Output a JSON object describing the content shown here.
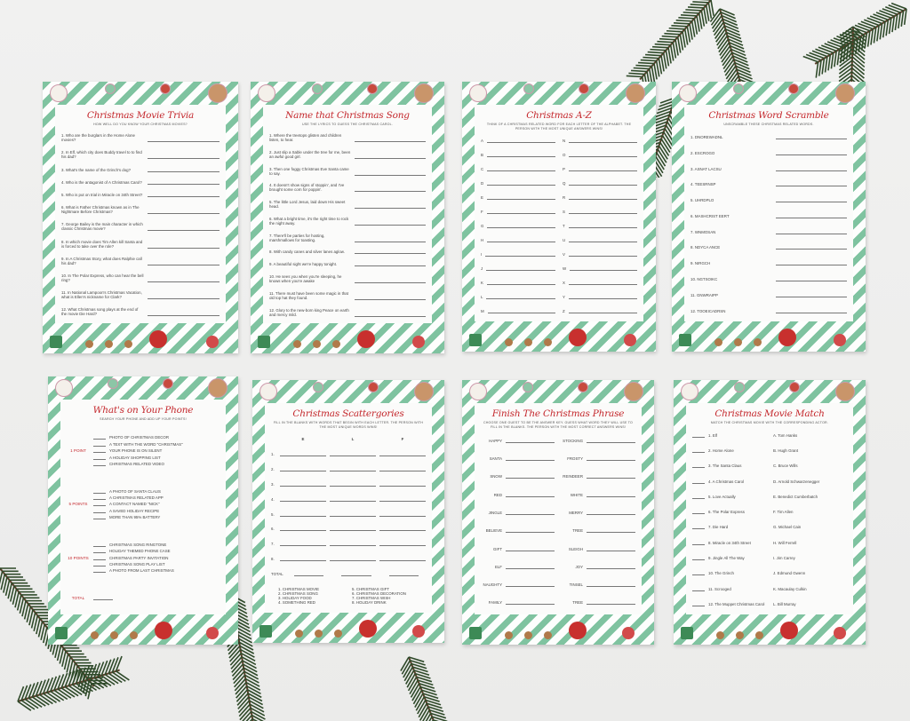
{
  "colors": {
    "stripe": "#7fc3a0",
    "title": "#c4272c",
    "pine": "#2f4a2a"
  },
  "cards": [
    {
      "type": "qa",
      "title": "Christmas Movie Trivia",
      "subtitle": "How well do you know your Christmas movies?",
      "items": [
        "1. Who are the burglars in the Home Alone movies?",
        "2. In Elf, which city does Buddy travel to to find his dad?",
        "3. What's the name of the Grinch's dog?",
        "4. Who is the antagonist of A Christmas Carol?",
        "5. Who is put on trial in Miracle on 34th Street?",
        "6. What is Father Christmas known as in The Nightmare Before Christmas?",
        "7. George Bailey is the main character in which classic Christmas movie?",
        "8. In which movie does Tim Allen kill Santa and is forced to take over the role?",
        "9. In A Christmas Story, what does Ralphie call his dad?",
        "10. In The Polar Express, who can hear the bell ring?",
        "11. In National Lampoon's Christmas Vacation, what is Ellen's nickname for Clark?",
        "12. What Christmas song plays at the end of the movie Die Hard?"
      ]
    },
    {
      "type": "qa",
      "title": "Name that Christmas Song",
      "subtitle": "Use the lyrics to guess the Christmas carol.",
      "items": [
        "1. Where the treetops glisten and children listen, to hear.",
        "2. Just slip a Sable under the tree for me, been an awful good girl.",
        "3. Then one foggy Christmas Eve Santa came to say.",
        "4. It doesn't show signs of stoppin', and I've brought some corn for poppin'.",
        "5. The little Lord Jesus, laid down His sweet head.",
        "6. What a bright time, it's the right time to rock the night away.",
        "7. There'll be parties for hosting, marshmallows for toasting.",
        "8. With candy canes and silver lanes aglow.",
        "9. A beautiful sight we're happy tonight.",
        "10. He sees you when you're sleeping, he knows when you're awake",
        "11. There must have been some magic in that old top hat they found.",
        "12. Glory to the new-born king Peace on earth and mercy mild."
      ]
    },
    {
      "type": "two",
      "title": "Christmas A-Z",
      "subtitle": "Think of a Christmas related word for each letter of the alphabet. The person with the most unique answers wins!",
      "left": [
        "A",
        "B",
        "C",
        "D",
        "E",
        "F",
        "G",
        "H",
        "I",
        "J",
        "K",
        "L",
        "M"
      ],
      "right": [
        "N",
        "O",
        "P",
        "Q",
        "R",
        "S",
        "T",
        "U",
        "V",
        "W",
        "X",
        "Y",
        "Z"
      ]
    },
    {
      "type": "qa",
      "title": "Christmas Word Scramble",
      "subtitle": "Unscramble these Christmas related words.",
      "items": [
        "1. DNOREWADNL",
        "2. ESCROGO",
        "3. ASNAT LACSU",
        "4. TEESRNSP",
        "5. UHRDPLO",
        "6. MASHCRIST EERT",
        "7. WNMOSAN",
        "8. NDYCA ANCE",
        "9. NIRGCH",
        "10. NGTSOIKC",
        "11. GNWRAIPP",
        "12. TOOEICADRSN"
      ]
    },
    {
      "type": "phone",
      "title": "What's on Your Phone",
      "subtitle": "Search your phone and add up your points!",
      "groups": [
        {
          "points": "1 POINT",
          "items": [
            "PHOTO OF CHRISTMAS DECOR",
            "A TEXT WITH THE WORD \"CHRISTMAS\"",
            "YOUR PHONE IS ON SILENT",
            "A HOLIDAY SHOPPING LIST",
            "CHRISTMAS RELATED VIDEO"
          ]
        },
        {
          "points": "5 POINTS",
          "items": [
            "A PHOTO OF SANTA CLAUS",
            "A CHRISTMAS RELATED APP",
            "A CONTACT NAMED \"NICK\"",
            "A SAVED HOLIDAY RECIPE",
            "MORE THAN 95% BATTERY"
          ]
        },
        {
          "points": "10 POINTS",
          "items": [
            "CHRISTMAS SONG RINGTONE",
            "HOLIDAY THEMED PHONE CASE",
            "CHRISTMAS PARTY INVITATION",
            "CHRISTMAS SONG PLAY LIST",
            "A PHOTO FROM LAST CHRISTMAS"
          ]
        }
      ],
      "total": "TOTAL"
    },
    {
      "type": "scat",
      "title": "Christmas Scattergories",
      "subtitle": "Fill in the blanks with words that begin with each letter. The person with the most unique words wins!",
      "letters": [
        "E",
        "L",
        "F"
      ],
      "rows": [
        "1.",
        "2.",
        "3.",
        "4.",
        "5.",
        "6.",
        "7.",
        "8."
      ],
      "total": "TOTAL",
      "categories": [
        "1. CHRISTMAS MOVIE",
        "2. CHRISTMAS SONG",
        "3. HOLIDAY FOOD",
        "4. SOMETHING RED",
        "5. CHRISTMAS GIFT",
        "6. CHRISTMAS DECORATION",
        "7. CHRISTMAS WISH",
        "8. HOLIDAY DRINK"
      ]
    },
    {
      "type": "two",
      "title": "Finish The Christmas Phrase",
      "subtitle": "Choose one guest to be the answer key. Guess what word they will use to fill in the blanks. The person with the most correct answers wins!",
      "left": [
        "HAPPY",
        "SANTA",
        "SNOW",
        "RED",
        "JINGLE",
        "BELIEVE",
        "GIFT",
        "ELF",
        "NAUGHTY",
        "FAMILY"
      ],
      "right": [
        "STOCKING",
        "FROSTY",
        "REINDEER",
        "WHITE",
        "MERRY",
        "TREE",
        "SLEIGH",
        "JOY",
        "TINSEL",
        "TREE"
      ]
    },
    {
      "type": "match",
      "title": "Christmas Movie Match",
      "subtitle": "Match the Christmas movie with the corresponding actor.",
      "left": [
        "1. Elf",
        "2. Home Alone",
        "3. The Santa Claus",
        "4. A Christmas Carol",
        "5. Love Actually",
        "6. The Polar Express",
        "7. Die Hard",
        "8. Miracle on 34th Street",
        "9. Jingle All The Way",
        "10. The Grinch",
        "11. Scrooged",
        "12. The Muppet Christmas Carol"
      ],
      "right": [
        "A. Tom Hanks",
        "B. Hugh Grant",
        "C. Bruce Wills",
        "D. Arnold Schwarzenegger",
        "E. Benedict Cumberbatch",
        "F. Tim Allen",
        "G. Michael Cain",
        "H. Will Ferrell",
        "I. Jim Carrey",
        "J. Edmund Gwenn",
        "K. Macaulay Culkin",
        "L. Bill Murray"
      ]
    }
  ]
}
